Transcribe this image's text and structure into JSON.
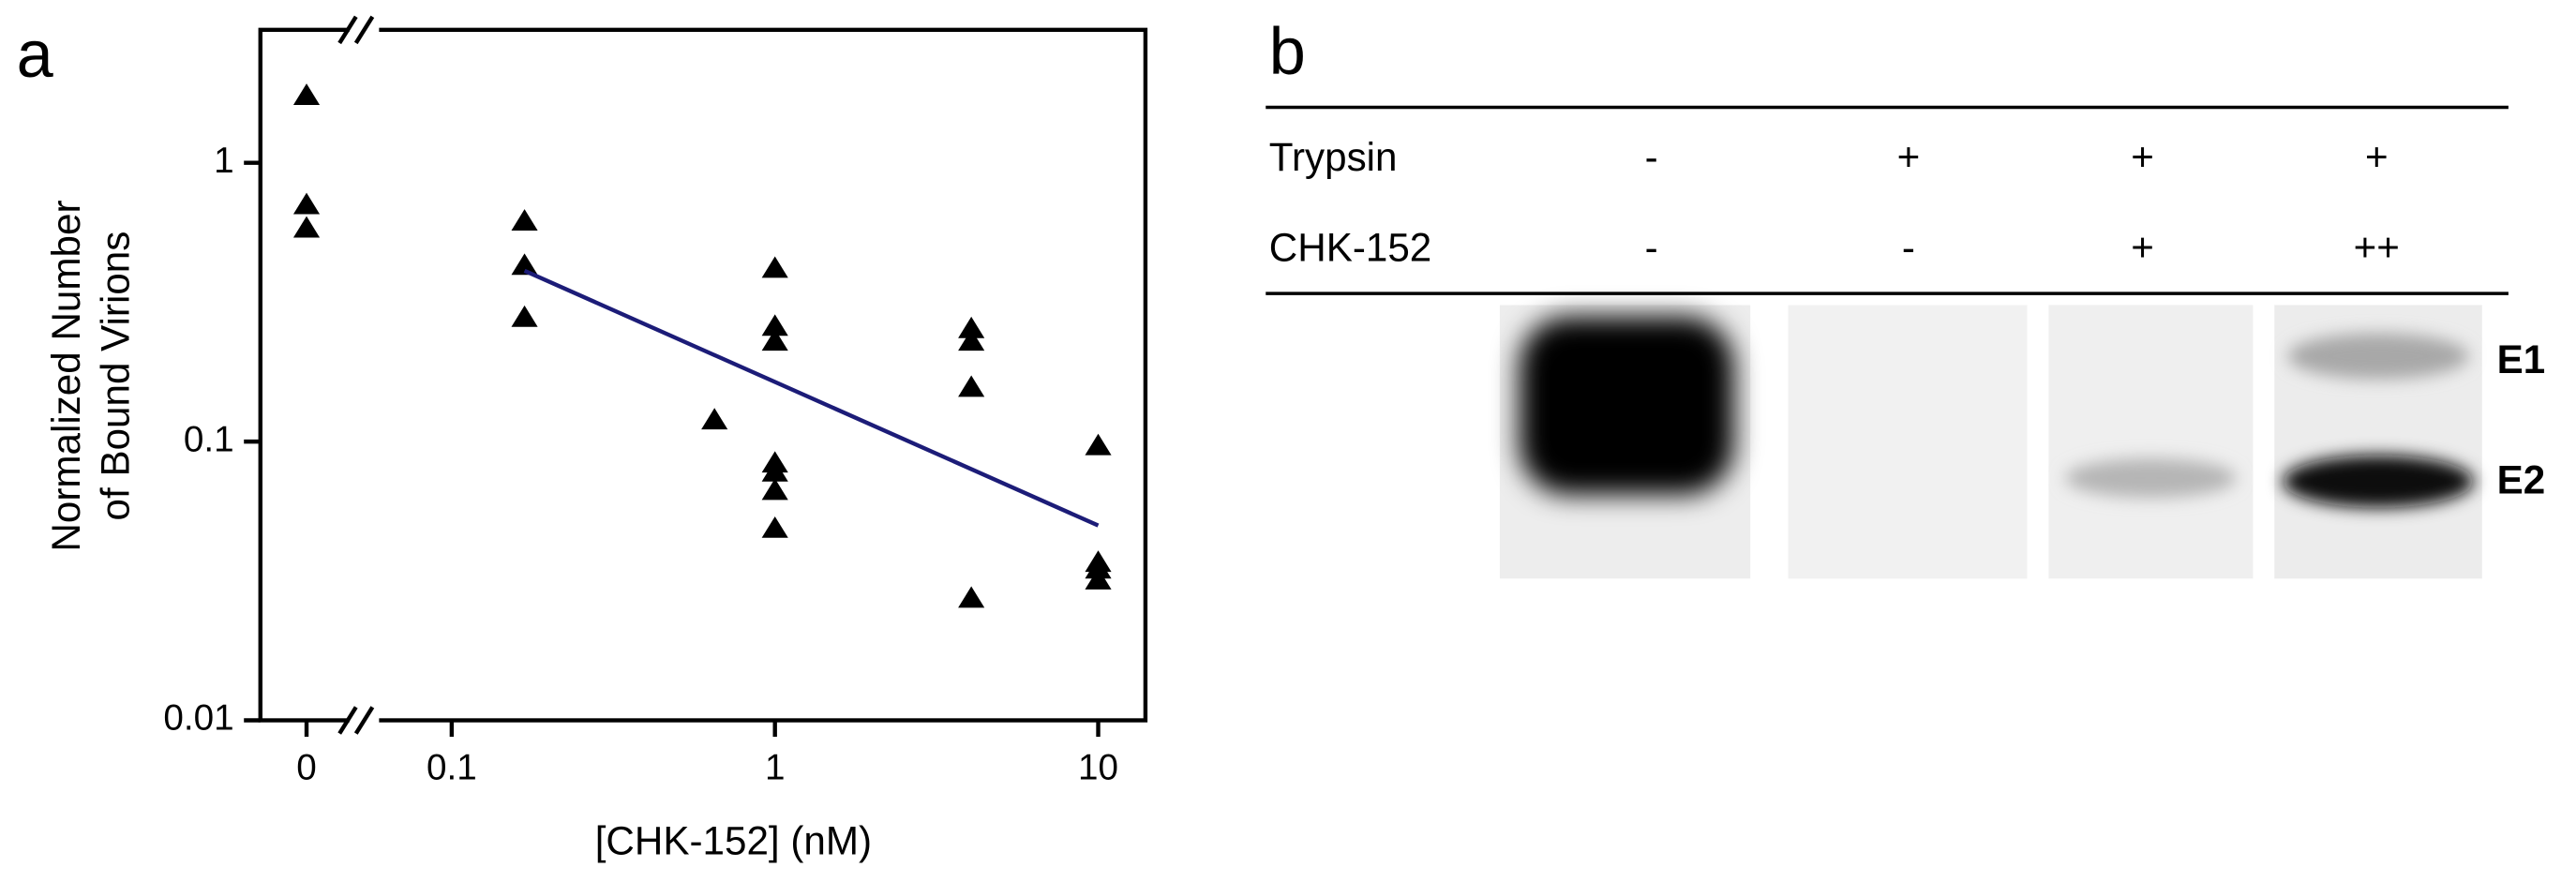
{
  "chart_data": {
    "type": "scatter",
    "label": "a",
    "xlabel": "[CHK-152] (nM)",
    "ylabel": [
      "Normalized Number",
      "of Bound Virions"
    ],
    "xscale": "log",
    "yscale": "log",
    "x_break": true,
    "xlim": [
      0.053,
      14
    ],
    "ylim": [
      0.01,
      3
    ],
    "xticks": [
      0,
      0.1,
      1,
      10
    ],
    "yticks": [
      0.01,
      0.1,
      1
    ],
    "series": [
      {
        "marker": "triangle",
        "color": "#000000",
        "x": [
          0,
          0,
          0,
          0.168,
          0.168,
          0.168,
          0.65,
          1,
          1,
          1,
          1,
          1,
          1,
          1,
          4.05,
          4.05,
          4.05,
          4.05,
          10,
          10,
          10,
          10
        ],
        "values": [
          1.75,
          0.71,
          0.585,
          0.62,
          0.43,
          0.28,
          0.12,
          0.42,
          0.26,
          0.23,
          0.084,
          0.078,
          0.067,
          0.049,
          0.255,
          0.23,
          0.157,
          0.0275,
          0.097,
          0.037,
          0.035,
          0.032
        ]
      },
      {
        "marker": "line",
        "color": "#1c1c78",
        "x": [
          0.168,
          10
        ],
        "values": [
          0.41,
          0.05
        ]
      }
    ]
  },
  "blot": {
    "label": "b",
    "rows": [
      {
        "name": "Trypsin",
        "lanes": [
          "-",
          "+",
          "+",
          "+"
        ]
      },
      {
        "name": "CHK-152",
        "lanes": [
          "-",
          "-",
          "+",
          "++"
        ]
      }
    ],
    "bands": [
      "E1",
      "E2"
    ]
  }
}
